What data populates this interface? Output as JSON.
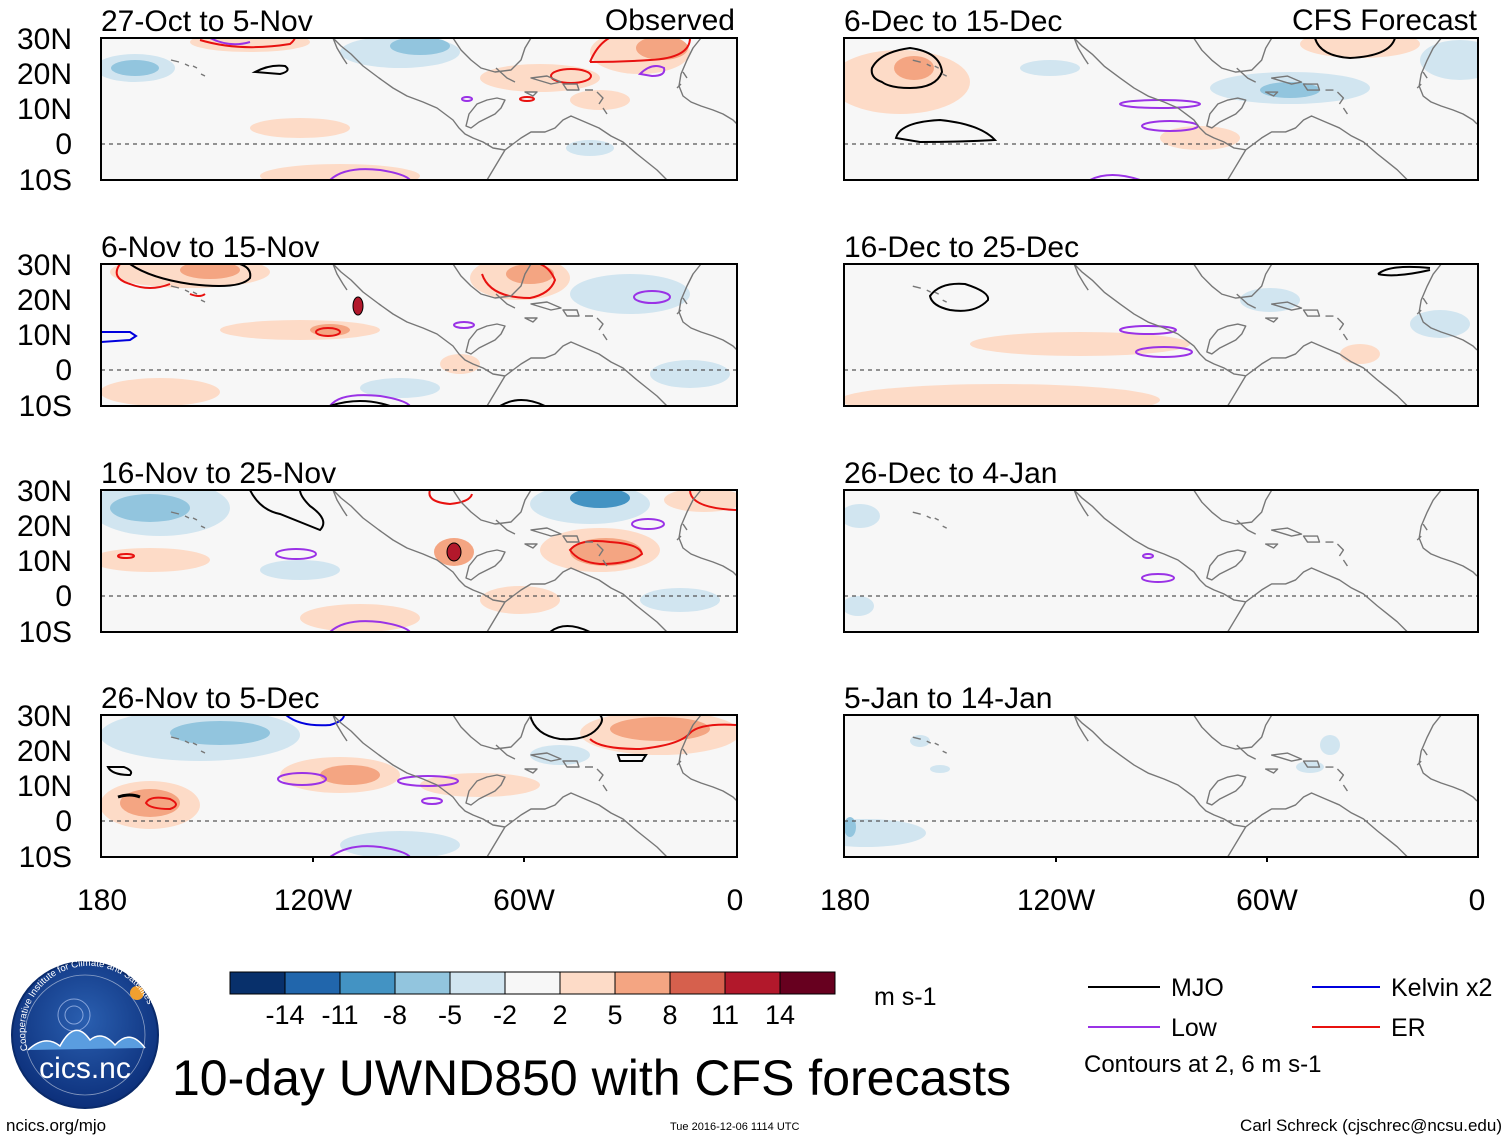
{
  "title": "10-day UWND850 with CFS forecasts",
  "units": "m s-1",
  "columns": {
    "left_label": "Observed",
    "right_label": "CFS Forecast"
  },
  "panels": {
    "left": [
      {
        "period": "27-Oct to 5-Nov"
      },
      {
        "period": "6-Nov to 15-Nov"
      },
      {
        "period": "16-Nov to 25-Nov"
      },
      {
        "period": "26-Nov to 5-Dec"
      }
    ],
    "right": [
      {
        "period": "6-Dec to 15-Dec"
      },
      {
        "period": "16-Dec to 25-Dec"
      },
      {
        "period": "26-Dec to 4-Jan"
      },
      {
        "period": "5-Jan to 14-Jan"
      }
    ]
  },
  "axes": {
    "lat_labels": [
      "30N",
      "20N",
      "10N",
      "0",
      "10S"
    ],
    "lon_labels": [
      "180",
      "120W",
      "60W",
      "0"
    ]
  },
  "colorbar": {
    "tick_labels": [
      "-14",
      "-11",
      "-8",
      "-5",
      "-2",
      "2",
      "5",
      "8",
      "11",
      "14"
    ],
    "colors": [
      "#08306b",
      "#2166ac",
      "#4393c3",
      "#92c5de",
      "#d1e5f0",
      "#f7f7f7",
      "#fddbc7",
      "#f4a582",
      "#d6604d",
      "#b2182b",
      "#67001f"
    ]
  },
  "legend": {
    "items": [
      {
        "label": "MJO",
        "color": "#000000"
      },
      {
        "label": "Kelvin x2",
        "color": "#0000dd"
      },
      {
        "label": "Low",
        "color": "#9a32e6"
      },
      {
        "label": "ER",
        "color": "#e8110f"
      }
    ],
    "contour_note": "Contours at 2, 6 m s-1"
  },
  "logo": {
    "text": "cics.nc",
    "arc_text": "Cooperative Institute for Climate and Satellites"
  },
  "footer": {
    "left": "ncics.org/mjo",
    "center": "Tue 2016-12-06 1114 UTC",
    "right": "Carl Schreck (cjschrec@ncsu.edu)"
  }
}
